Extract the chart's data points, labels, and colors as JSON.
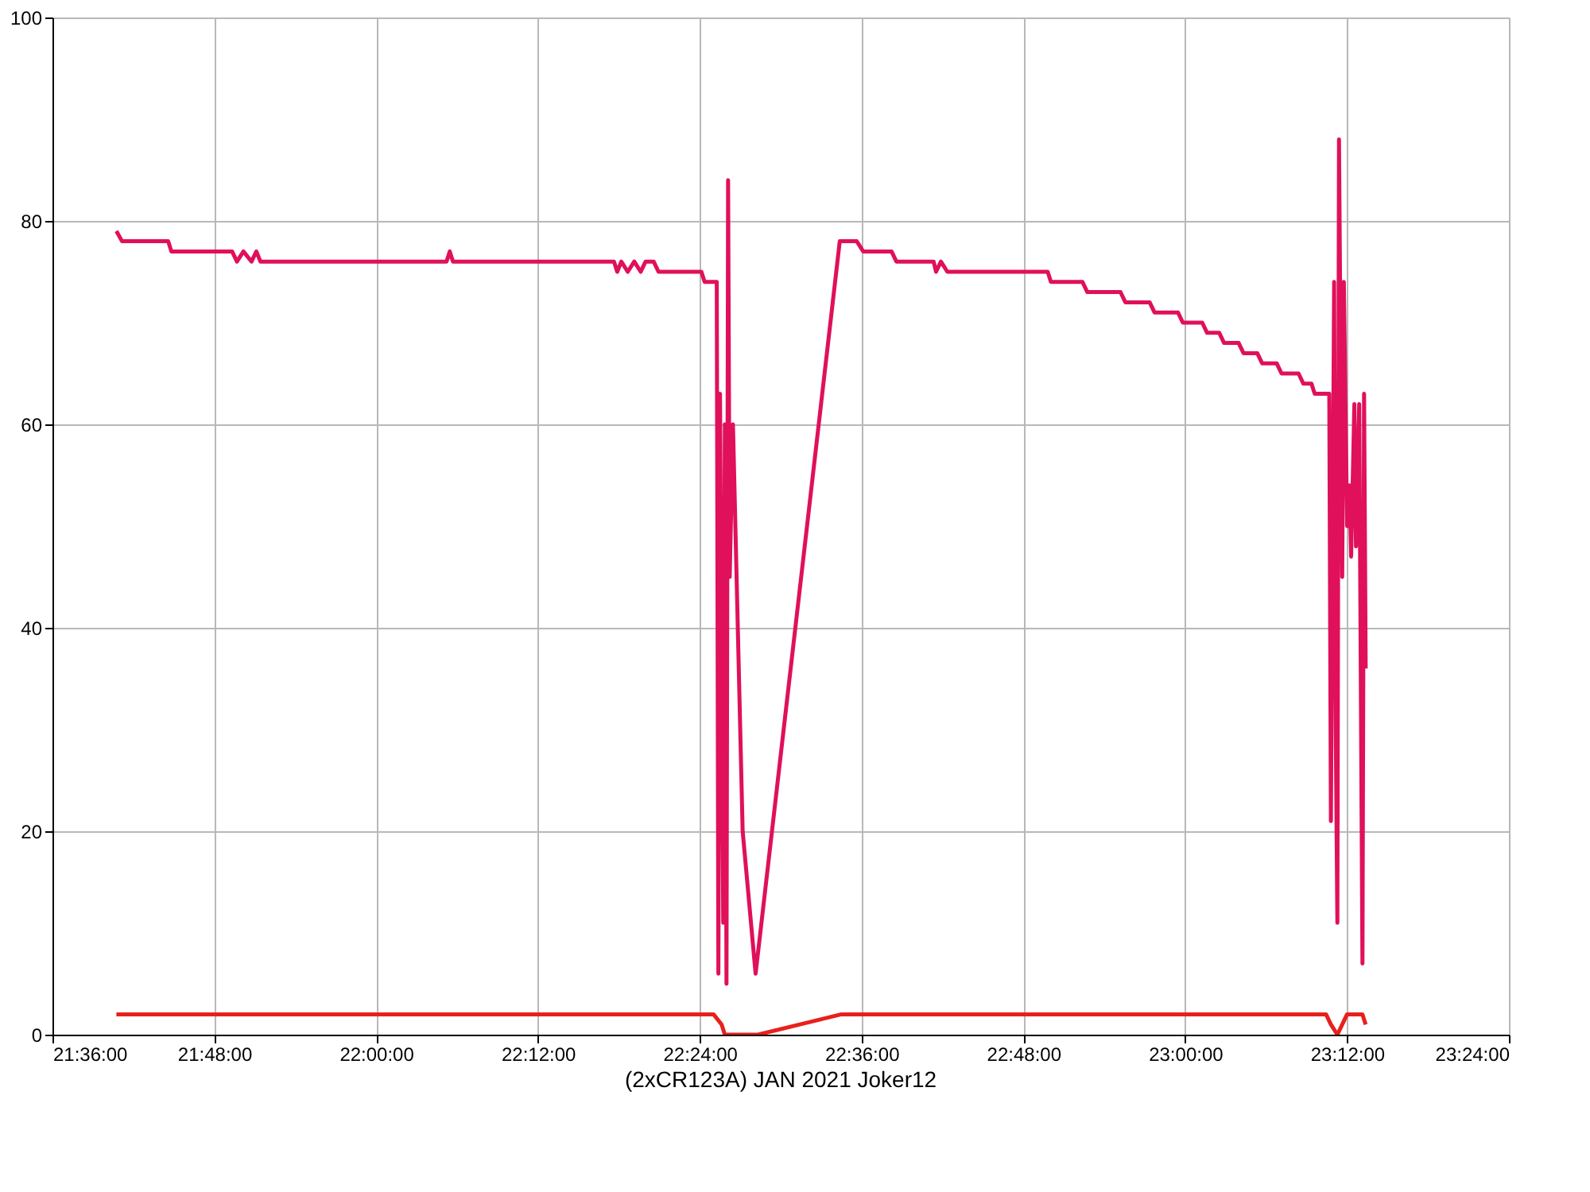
{
  "chart_data": {
    "type": "line",
    "title": "(2xCR123A) JAN 2021   Joker12",
    "xlim": [
      21.6,
      23.4
    ],
    "xticks": [
      {
        "value": 21.6,
        "label": "21:36:00"
      },
      {
        "value": 21.8,
        "label": "21:48:00"
      },
      {
        "value": 22,
        "label": "22:00:00"
      },
      {
        "value": 22.2,
        "label": "22:12:00"
      },
      {
        "value": 22.4,
        "label": "22:24:00"
      },
      {
        "value": 22.6,
        "label": "22:36:00"
      },
      {
        "value": 22.8,
        "label": "22:48:00"
      },
      {
        "value": 23,
        "label": "23:00:00"
      },
      {
        "value": 23.2,
        "label": "23:12:00"
      },
      {
        "value": 23.4,
        "label": "23:24:00"
      }
    ],
    "ylim": [
      0,
      100
    ],
    "yticks": [
      0,
      20,
      40,
      60,
      80,
      100
    ],
    "grid": true,
    "line_style": "solid",
    "marker": "none",
    "series": [
      {
        "color": "#e0105a",
        "x": [
          21.679,
          21.686,
          21.743,
          21.747,
          21.822,
          21.828,
          21.836,
          21.846,
          21.852,
          21.857,
          22.087,
          22.091,
          22.095,
          22.294,
          22.298,
          22.303,
          22.311,
          22.319,
          22.327,
          22.333,
          22.343,
          22.349,
          22.402,
          22.406,
          22.421,
          22.423,
          22.425,
          22.429,
          22.431,
          22.433,
          22.435,
          22.437,
          22.441,
          22.453,
          22.469,
          22.573,
          22.594,
          22.602,
          22.637,
          22.643,
          22.689,
          22.692,
          22.698,
          22.706,
          22.83,
          22.834,
          22.873,
          22.879,
          22.92,
          22.926,
          22.956,
          22.962,
          22.991,
          22.997,
          23.021,
          23.027,
          23.042,
          23.048,
          23.066,
          23.072,
          23.089,
          23.095,
          23.113,
          23.119,
          23.14,
          23.146,
          23.156,
          23.16,
          23.178,
          23.18,
          23.184,
          23.186,
          23.188,
          23.19,
          23.194,
          23.196,
          23.2,
          23.203,
          23.205,
          23.209,
          23.211,
          23.215,
          23.219,
          23.221,
          23.223
        ],
        "values": [
          79,
          78,
          78,
          77,
          77,
          76,
          77,
          76,
          77,
          76,
          76,
          77,
          76,
          76,
          75,
          76,
          75,
          76,
          75,
          76,
          76,
          75,
          75,
          74,
          74,
          6,
          63,
          11,
          60,
          5,
          84,
          45,
          60,
          20,
          6,
          78,
          78,
          77,
          77,
          76,
          76,
          75,
          76,
          75,
          75,
          74,
          74,
          73,
          73,
          72,
          72,
          71,
          71,
          70,
          70,
          69,
          69,
          68,
          68,
          67,
          67,
          66,
          66,
          65,
          65,
          64,
          64,
          63,
          63,
          21,
          74,
          30,
          11,
          88,
          45,
          74,
          50,
          54,
          47,
          62,
          48,
          62,
          7,
          63,
          36
        ]
      },
      {
        "color": "#e8201c",
        "x": [
          21.679,
          22.417,
          22.427,
          22.431,
          22.472,
          22.575,
          23.174,
          23.18,
          23.188,
          23.2,
          23.219,
          23.223
        ],
        "values": [
          2,
          2,
          1,
          0,
          0,
          2,
          2,
          1,
          0,
          2,
          2,
          1
        ]
      }
    ]
  }
}
